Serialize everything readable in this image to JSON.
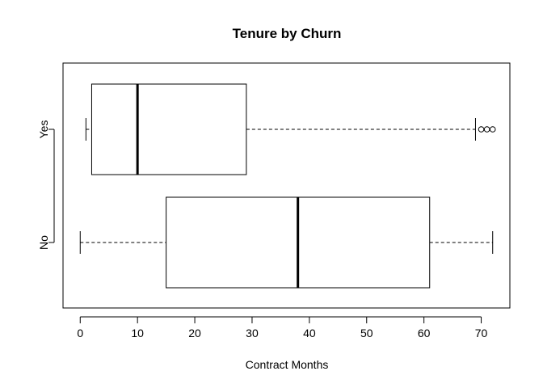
{
  "chart_data": {
    "type": "boxplot",
    "orientation": "horizontal",
    "title": "Tenure by Churn",
    "xlabel": "Contract Months",
    "ylabel": "",
    "xlim": [
      -3,
      75
    ],
    "x_ticks": [
      0,
      10,
      20,
      30,
      40,
      50,
      60,
      70
    ],
    "grid": false,
    "legend": "none",
    "categories": [
      "No",
      "Yes"
    ],
    "boxes": [
      {
        "category": "No",
        "min": 0,
        "q1": 15,
        "median": 38,
        "q3": 61,
        "max": 72,
        "outliers": []
      },
      {
        "category": "Yes",
        "min": 1,
        "q1": 2,
        "median": 10,
        "q3": 29,
        "max": 69,
        "outliers": [
          70,
          71,
          72
        ]
      }
    ]
  }
}
